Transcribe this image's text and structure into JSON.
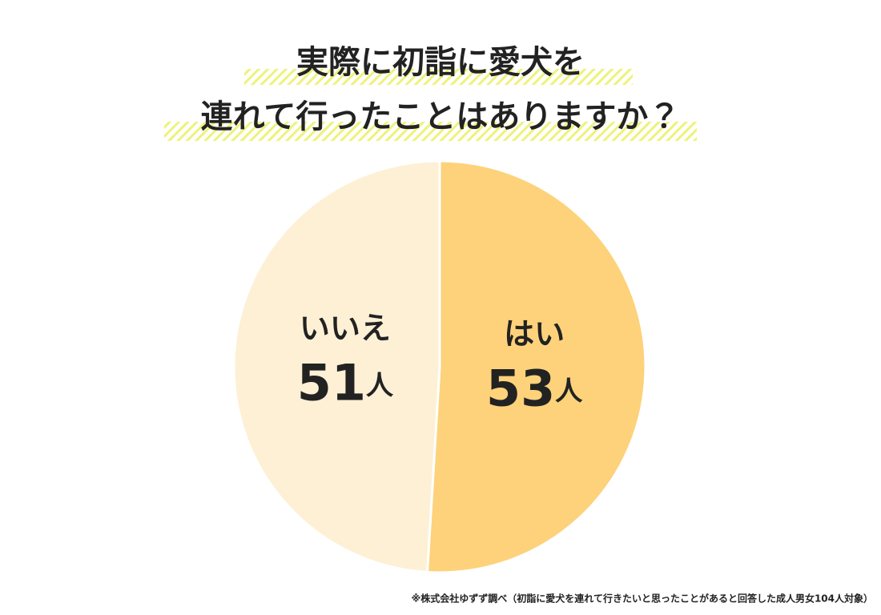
{
  "chart_data": {
    "type": "pie",
    "title": [
      "実際に初詣に愛犬を",
      "連れて行ったことはありますか？"
    ],
    "categories": [
      "はい",
      "いいえ"
    ],
    "values": [
      53,
      51
    ],
    "value_labels": [
      "53人",
      "51人"
    ],
    "colors": [
      "#fdd27a",
      "#fdf0d5"
    ],
    "note": "※株式会社ゆずず調べ（初詣に愛犬を連れて行きたいと思ったことがあると回答した成人男女104人対象）"
  }
}
